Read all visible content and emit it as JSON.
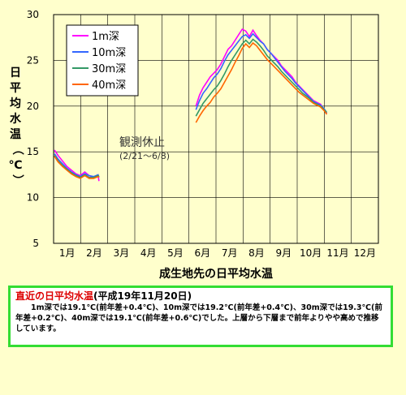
{
  "chart_data": {
    "type": "line",
    "xlabel": "成生地先の日平均水温",
    "ylabel": "日平均水温（℃）",
    "ylim": [
      5,
      30
    ],
    "yticks": [
      5,
      10,
      15,
      20,
      25,
      30
    ],
    "months": [
      "1月",
      "2月",
      "3月",
      "4月",
      "5月",
      "6月",
      "7月",
      "8月",
      "9月",
      "10月",
      "11月",
      "12月"
    ],
    "grid": true,
    "legend_position": "top-left",
    "annotation": {
      "title": "観測休止",
      "sub": "(2/21〜6/8)"
    },
    "series": [
      {
        "name": "1m深",
        "color": "#FF00FF",
        "jan_feb": [
          [
            1,
            15.2
          ],
          [
            5,
            14.6
          ],
          [
            10,
            14.0
          ],
          [
            15,
            13.4
          ],
          [
            20,
            13.0
          ],
          [
            25,
            12.6
          ],
          [
            30,
            12.4
          ],
          [
            35,
            12.8
          ],
          [
            40,
            12.4
          ],
          [
            45,
            12.2
          ],
          [
            50,
            12.4
          ],
          [
            51,
            11.8
          ]
        ],
        "jun_nov": [
          [
            160,
            20.0
          ],
          [
            164,
            21.2
          ],
          [
            168,
            22.0
          ],
          [
            172,
            22.6
          ],
          [
            176,
            23.2
          ],
          [
            180,
            23.6
          ],
          [
            184,
            24.0
          ],
          [
            188,
            24.6
          ],
          [
            192,
            25.4
          ],
          [
            196,
            26.2
          ],
          [
            200,
            26.6
          ],
          [
            204,
            27.2
          ],
          [
            208,
            27.8
          ],
          [
            212,
            28.4
          ],
          [
            216,
            28.2
          ],
          [
            220,
            27.6
          ],
          [
            224,
            28.3
          ],
          [
            228,
            27.7
          ],
          [
            232,
            27.2
          ],
          [
            236,
            26.8
          ],
          [
            240,
            26.2
          ],
          [
            244,
            25.8
          ],
          [
            248,
            25.4
          ],
          [
            252,
            25.0
          ],
          [
            256,
            24.4
          ],
          [
            260,
            24.0
          ],
          [
            264,
            23.6
          ],
          [
            268,
            23.2
          ],
          [
            272,
            22.6
          ],
          [
            276,
            22.2
          ],
          [
            280,
            21.8
          ],
          [
            284,
            21.4
          ],
          [
            288,
            21.0
          ],
          [
            292,
            20.6
          ],
          [
            296,
            20.4
          ],
          [
            300,
            20.2
          ],
          [
            304,
            19.6
          ],
          [
            307,
            19.2
          ]
        ]
      },
      {
        "name": "10m深",
        "color": "#3366FF",
        "jan_feb": [
          [
            1,
            14.8
          ],
          [
            5,
            14.2
          ],
          [
            10,
            13.7
          ],
          [
            15,
            13.2
          ],
          [
            20,
            12.8
          ],
          [
            25,
            12.5
          ],
          [
            30,
            12.3
          ],
          [
            35,
            12.6
          ],
          [
            40,
            12.4
          ],
          [
            45,
            12.3
          ],
          [
            50,
            12.5
          ],
          [
            51,
            12.2
          ]
        ],
        "jun_nov": [
          [
            160,
            19.6
          ],
          [
            164,
            20.6
          ],
          [
            168,
            21.4
          ],
          [
            172,
            21.9
          ],
          [
            176,
            22.5
          ],
          [
            180,
            23.1
          ],
          [
            184,
            23.5
          ],
          [
            188,
            24.1
          ],
          [
            192,
            24.9
          ],
          [
            196,
            25.6
          ],
          [
            200,
            26.1
          ],
          [
            204,
            26.6
          ],
          [
            208,
            27.1
          ],
          [
            212,
            27.6
          ],
          [
            216,
            27.8
          ],
          [
            220,
            27.4
          ],
          [
            224,
            27.9
          ],
          [
            228,
            27.5
          ],
          [
            232,
            27.1
          ],
          [
            236,
            26.8
          ],
          [
            240,
            26.2
          ],
          [
            244,
            25.8
          ],
          [
            248,
            25.3
          ],
          [
            252,
            24.8
          ],
          [
            256,
            24.3
          ],
          [
            260,
            23.8
          ],
          [
            264,
            23.4
          ],
          [
            268,
            23.0
          ],
          [
            272,
            22.5
          ],
          [
            276,
            22.1
          ],
          [
            280,
            21.7
          ],
          [
            284,
            21.3
          ],
          [
            288,
            20.9
          ],
          [
            292,
            20.5
          ],
          [
            296,
            20.3
          ],
          [
            300,
            20.1
          ],
          [
            304,
            19.7
          ],
          [
            307,
            19.3
          ]
        ]
      },
      {
        "name": "30m深",
        "color": "#339966",
        "jan_feb": [
          [
            1,
            14.6
          ],
          [
            5,
            14.0
          ],
          [
            10,
            13.5
          ],
          [
            15,
            13.1
          ],
          [
            20,
            12.7
          ],
          [
            25,
            12.4
          ],
          [
            30,
            12.2
          ],
          [
            35,
            12.5
          ],
          [
            40,
            12.2
          ],
          [
            45,
            12.2
          ],
          [
            50,
            12.4
          ],
          [
            51,
            12.3
          ]
        ],
        "jun_nov": [
          [
            160,
            18.9
          ],
          [
            164,
            19.6
          ],
          [
            168,
            20.3
          ],
          [
            172,
            20.8
          ],
          [
            176,
            21.3
          ],
          [
            180,
            21.8
          ],
          [
            184,
            22.2
          ],
          [
            188,
            22.8
          ],
          [
            192,
            23.5
          ],
          [
            196,
            24.3
          ],
          [
            200,
            25.0
          ],
          [
            204,
            25.6
          ],
          [
            208,
            26.2
          ],
          [
            212,
            26.8
          ],
          [
            216,
            27.2
          ],
          [
            220,
            26.8
          ],
          [
            224,
            27.3
          ],
          [
            228,
            27.0
          ],
          [
            232,
            26.6
          ],
          [
            236,
            26.1
          ],
          [
            240,
            25.5
          ],
          [
            244,
            25.1
          ],
          [
            248,
            24.7
          ],
          [
            252,
            24.3
          ],
          [
            256,
            23.8
          ],
          [
            260,
            23.4
          ],
          [
            264,
            23.0
          ],
          [
            268,
            22.6
          ],
          [
            272,
            22.2
          ],
          [
            276,
            21.8
          ],
          [
            280,
            21.4
          ],
          [
            284,
            21.1
          ],
          [
            288,
            20.8
          ],
          [
            292,
            20.4
          ],
          [
            296,
            20.2
          ],
          [
            300,
            20.0
          ],
          [
            304,
            19.6
          ],
          [
            307,
            19.3
          ]
        ]
      },
      {
        "name": "40m深",
        "color": "#FF6600",
        "jan_feb": [
          [
            1,
            14.5
          ],
          [
            5,
            13.9
          ],
          [
            10,
            13.4
          ],
          [
            15,
            13.0
          ],
          [
            20,
            12.6
          ],
          [
            25,
            12.3
          ],
          [
            30,
            12.1
          ],
          [
            35,
            12.4
          ],
          [
            40,
            12.1
          ],
          [
            45,
            12.1
          ],
          [
            50,
            12.3
          ],
          [
            51,
            12.2
          ]
        ],
        "jun_nov": [
          [
            160,
            18.2
          ],
          [
            164,
            18.9
          ],
          [
            168,
            19.5
          ],
          [
            172,
            20.0
          ],
          [
            176,
            20.4
          ],
          [
            180,
            21.0
          ],
          [
            184,
            21.4
          ],
          [
            188,
            21.9
          ],
          [
            192,
            22.6
          ],
          [
            196,
            23.3
          ],
          [
            200,
            24.0
          ],
          [
            204,
            24.8
          ],
          [
            208,
            25.5
          ],
          [
            212,
            26.3
          ],
          [
            216,
            26.8
          ],
          [
            220,
            26.4
          ],
          [
            224,
            26.9
          ],
          [
            228,
            26.6
          ],
          [
            232,
            26.1
          ],
          [
            236,
            25.6
          ],
          [
            240,
            25.1
          ],
          [
            244,
            24.7
          ],
          [
            248,
            24.3
          ],
          [
            252,
            23.9
          ],
          [
            256,
            23.5
          ],
          [
            260,
            23.1
          ],
          [
            264,
            22.7
          ],
          [
            268,
            22.3
          ],
          [
            272,
            21.9
          ],
          [
            276,
            21.5
          ],
          [
            280,
            21.2
          ],
          [
            284,
            20.9
          ],
          [
            288,
            20.6
          ],
          [
            292,
            20.3
          ],
          [
            296,
            20.1
          ],
          [
            300,
            19.9
          ],
          [
            304,
            19.5
          ],
          [
            307,
            19.1
          ]
        ]
      }
    ]
  },
  "info": {
    "headline": "直近の日平均水温",
    "date": "(平成19年11月20日)",
    "body": "1m深では19.1℃(前年差+0.4℃)、10m深では19.2℃(前年差+0.4℃)、30m深では19.3℃(前年差+0.2℃)、40m深では19.1℃(前年差+0.6℃)でした。上層から下層まで前年よりやや高めで推移しています。"
  }
}
